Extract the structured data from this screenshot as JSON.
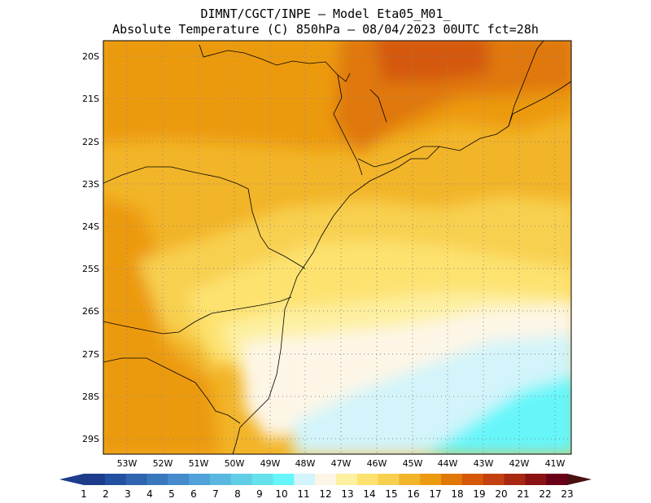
{
  "header": {
    "line1": "DIMNT/CGCT/INPE –  Model Eta05_M01_",
    "line2": "Absolute Temperature (C) 850hPa –  08/04/2023 00UTC fct=28h"
  },
  "axes": {
    "lat_labels": [
      "20S",
      "21S",
      "22S",
      "23S",
      "24S",
      "25S",
      "26S",
      "27S",
      "28S",
      "29S"
    ],
    "lon_labels": [
      "53W",
      "52W",
      "51W",
      "50W",
      "49W",
      "48W",
      "47W",
      "46W",
      "45W",
      "44W",
      "43W",
      "42W",
      "41W"
    ]
  },
  "colorbar": {
    "labels": [
      "1",
      "2",
      "3",
      "4",
      "5",
      "6",
      "7",
      "8",
      "9",
      "10",
      "11",
      "12",
      "13",
      "14",
      "15",
      "16",
      "17",
      "18",
      "19",
      "20",
      "21",
      "22",
      "23"
    ],
    "colors": [
      "#1e3c8c",
      "#2350a0",
      "#2e64b0",
      "#3a78be",
      "#468ccc",
      "#50a2d8",
      "#5ab8e0",
      "#62cde6",
      "#66e2ec",
      "#66f6fa",
      "#d2f4fa",
      "#fdf6e6",
      "#fdf0a0",
      "#fde270",
      "#f8d050",
      "#f2b428",
      "#ec9a10",
      "#e07808",
      "#d45808",
      "#c44010",
      "#a82812",
      "#8a1212",
      "#6a0018"
    ],
    "arrow_left_color": "#1e3c8c",
    "arrow_right_color": "#4a1010"
  }
}
